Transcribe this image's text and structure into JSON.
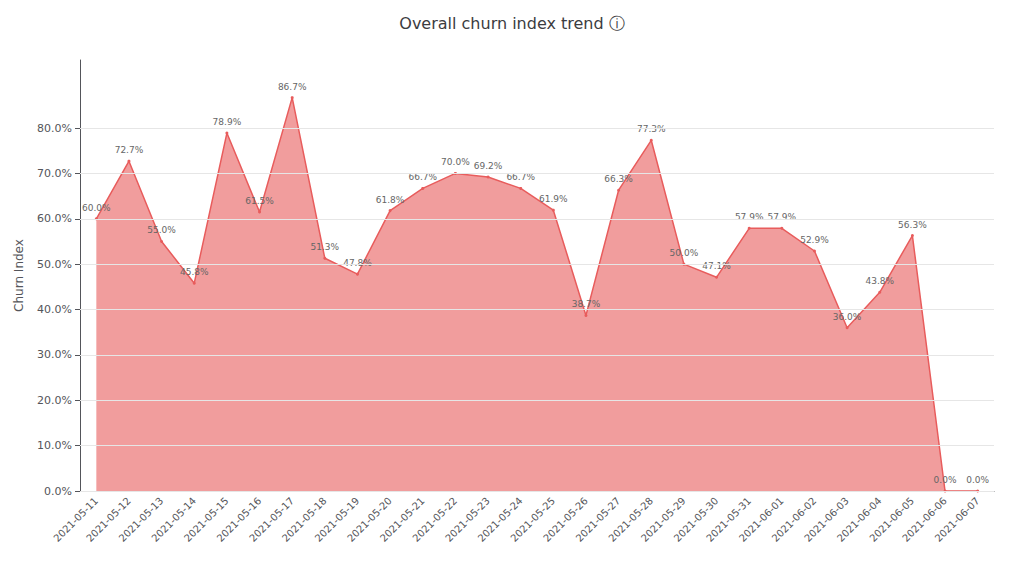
{
  "chart_data": {
    "type": "area",
    "title": "Overall churn index trend ⓘ",
    "x_label": "",
    "y_label": "Churn Index",
    "categories": [
      "2021-05-11",
      "2021-05-12",
      "2021-05-13",
      "2021-05-14",
      "2021-05-15",
      "2021-05-16",
      "2021-05-17",
      "2021-05-18",
      "2021-05-19",
      "2021-05-20",
      "2021-05-21",
      "2021-05-22",
      "2021-05-23",
      "2021-05-24",
      "2021-05-25",
      "2021-05-26",
      "2021-05-27",
      "2021-05-28",
      "2021-05-29",
      "2021-05-30",
      "2021-05-31",
      "2021-06-01",
      "2021-06-02",
      "2021-06-03",
      "2021-06-04",
      "2021-06-05",
      "2021-06-06",
      "2021-06-07"
    ],
    "values": [
      60.0,
      72.7,
      55.0,
      45.8,
      78.9,
      61.5,
      86.7,
      51.3,
      47.8,
      61.8,
      66.7,
      70.0,
      69.2,
      66.7,
      61.9,
      38.7,
      66.3,
      77.3,
      50.0,
      47.1,
      57.9,
      57.9,
      52.9,
      36.0,
      43.8,
      56.3,
      0.0,
      0.0
    ],
    "value_labels": [
      "60.0%",
      "72.7%",
      "55.0%",
      "45.8%",
      "78.9%",
      "61.5%",
      "86.7%",
      "51.3%",
      "47.8%",
      "61.8%",
      "66.7%",
      "70.0%",
      "69.2%",
      "66.7%",
      "61.9%",
      "38.7%",
      "66.3%",
      "77.3%",
      "50.0%",
      "47.1%",
      "57.9%",
      "57.9%",
      "52.9%",
      "36.0%",
      "43.8%",
      "56.3%",
      "0.0%",
      "0.0%"
    ],
    "data_labels": true,
    "color": "#e85c5c",
    "ylim": [
      0,
      95
    ],
    "yticks": [
      {
        "value": 0,
        "label": "0.0%"
      },
      {
        "value": 10,
        "label": "10.0%"
      },
      {
        "value": 20,
        "label": "20.0%"
      },
      {
        "value": 30,
        "label": "30.0%"
      },
      {
        "value": 40,
        "label": "40.0%"
      },
      {
        "value": 50,
        "label": "50.0%"
      },
      {
        "value": 60,
        "label": "60.0%"
      },
      {
        "value": 70,
        "label": "70.0%"
      },
      {
        "value": 80,
        "label": "80.0%"
      }
    ],
    "grid": true
  }
}
